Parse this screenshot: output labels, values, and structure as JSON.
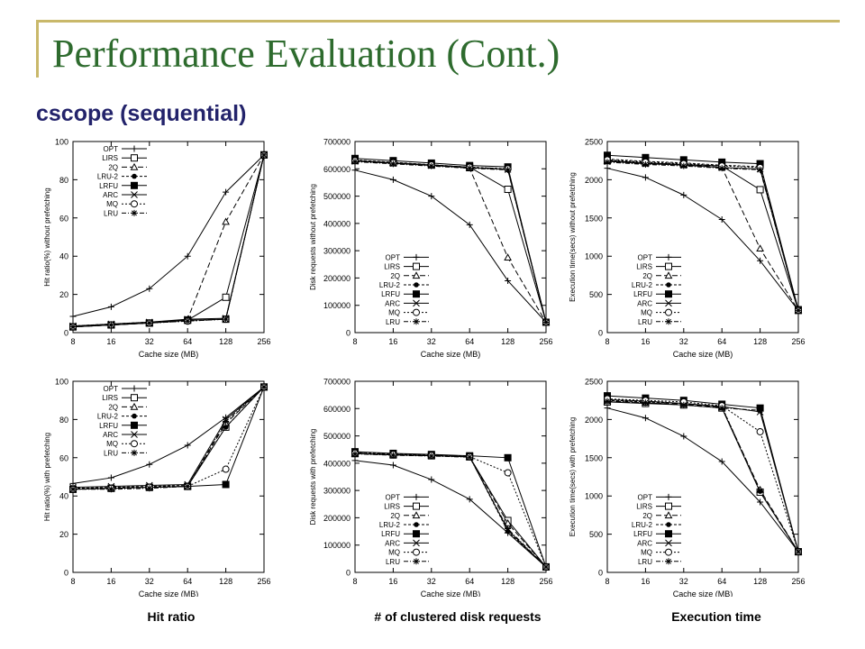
{
  "slide": {
    "title": "Performance Evaluation (Cont.)",
    "subtitle": "cscope (sequential)",
    "captions": [
      "Hit ratio",
      "# of clustered disk requests",
      "Execution time"
    ]
  },
  "legend_labels": [
    "OPT",
    "LIRS",
    "2Q",
    "LRU-2",
    "LRFU",
    "ARC",
    "MQ",
    "LRU"
  ],
  "chart_data": [
    {
      "type": "line",
      "xlabel": "Cache size (MB)",
      "ylabel": "Hit ratio(%) without prefetching",
      "categories": [
        "8",
        "16",
        "32",
        "64",
        "128",
        "256"
      ],
      "ylim": [
        0,
        100
      ],
      "yticks": [
        0,
        20,
        40,
        60,
        80,
        100
      ],
      "legend": "top-left",
      "series": [
        {
          "name": "OPT",
          "values": [
            8.5,
            13.5,
            23,
            40,
            73.5,
            93
          ]
        },
        {
          "name": "LIRS",
          "values": [
            3,
            4,
            5,
            6.5,
            18.5,
            93
          ]
        },
        {
          "name": "2Q",
          "values": [
            3,
            4,
            5,
            7,
            58,
            93
          ]
        },
        {
          "name": "LRU-2",
          "values": [
            3.5,
            4.5,
            5.5,
            6.5,
            7,
            93
          ]
        },
        {
          "name": "LRFU",
          "values": [
            3,
            4,
            5,
            6.5,
            7,
            93
          ]
        },
        {
          "name": "ARC",
          "values": [
            3.5,
            4.5,
            5.5,
            7,
            7.5,
            93
          ]
        },
        {
          "name": "MQ",
          "values": [
            3,
            4,
            5,
            6,
            7,
            93
          ]
        },
        {
          "name": "LRU",
          "values": [
            3,
            4,
            5,
            6,
            7,
            93
          ]
        }
      ]
    },
    {
      "type": "line",
      "xlabel": "Cache size (MB)",
      "ylabel": "Disk requests without prefetching",
      "categories": [
        "8",
        "16",
        "32",
        "64",
        "128",
        "256"
      ],
      "ylim": [
        0,
        700000
      ],
      "yticks": [
        0,
        100000,
        200000,
        300000,
        400000,
        500000,
        600000,
        700000
      ],
      "legend": "bottom-left",
      "series": [
        {
          "name": "OPT",
          "values": [
            595000,
            560000,
            500000,
            395000,
            190000,
            38000
          ]
        },
        {
          "name": "LIRS",
          "values": [
            630000,
            622000,
            614000,
            606000,
            525000,
            38000
          ]
        },
        {
          "name": "2Q",
          "values": [
            630000,
            622000,
            614000,
            602000,
            275000,
            38000
          ]
        },
        {
          "name": "LRU-2",
          "values": [
            632000,
            624000,
            615000,
            606000,
            600000,
            38000
          ]
        },
        {
          "name": "LRFU",
          "values": [
            638000,
            630000,
            621000,
            612000,
            607000,
            38000
          ]
        },
        {
          "name": "ARC",
          "values": [
            628000,
            620000,
            612000,
            604000,
            598000,
            38000
          ]
        },
        {
          "name": "MQ",
          "values": [
            630000,
            622000,
            614000,
            606000,
            600000,
            38000
          ]
        },
        {
          "name": "LRU",
          "values": [
            626000,
            618000,
            610000,
            602000,
            596000,
            38000
          ]
        }
      ]
    },
    {
      "type": "line",
      "xlabel": "Cache size (MB)",
      "ylabel": "Execution time(secs) without prefetching",
      "categories": [
        "8",
        "16",
        "32",
        "64",
        "128",
        "256"
      ],
      "ylim": [
        0,
        2500
      ],
      "yticks": [
        0,
        500,
        1000,
        1500,
        2000,
        2500
      ],
      "legend": "bottom-left",
      "series": [
        {
          "name": "OPT",
          "values": [
            2150,
            2030,
            1800,
            1480,
            940,
            290
          ]
        },
        {
          "name": "LIRS",
          "values": [
            2250,
            2220,
            2200,
            2180,
            1870,
            290
          ]
        },
        {
          "name": "2Q",
          "values": [
            2250,
            2220,
            2200,
            2160,
            1100,
            290
          ]
        },
        {
          "name": "LRU-2",
          "values": [
            2270,
            2240,
            2220,
            2190,
            2170,
            290
          ]
        },
        {
          "name": "LRFU",
          "values": [
            2320,
            2290,
            2260,
            2230,
            2210,
            300
          ]
        },
        {
          "name": "ARC",
          "values": [
            2240,
            2210,
            2190,
            2160,
            2140,
            290
          ]
        },
        {
          "name": "MQ",
          "values": [
            2260,
            2230,
            2210,
            2180,
            2160,
            290
          ]
        },
        {
          "name": "LRU",
          "values": [
            2230,
            2200,
            2180,
            2150,
            2130,
            290
          ]
        }
      ]
    },
    {
      "type": "line",
      "xlabel": "Cache size (MB)",
      "ylabel": "Hit ratio(%) with prefetching",
      "categories": [
        "8",
        "16",
        "32",
        "64",
        "128",
        "256"
      ],
      "ylim": [
        0,
        100
      ],
      "yticks": [
        0,
        20,
        40,
        60,
        80,
        100
      ],
      "legend": "top-left",
      "series": [
        {
          "name": "OPT",
          "values": [
            46.5,
            49.5,
            56.5,
            66.5,
            81,
            97
          ]
        },
        {
          "name": "LIRS",
          "values": [
            43.5,
            44,
            44.5,
            45,
            76,
            97
          ]
        },
        {
          "name": "2Q",
          "values": [
            43.5,
            44,
            44.5,
            45,
            78,
            97
          ]
        },
        {
          "name": "LRU-2",
          "values": [
            44,
            44.5,
            45,
            45.5,
            76,
            97
          ]
        },
        {
          "name": "LRFU",
          "values": [
            43.5,
            44,
            44.5,
            45,
            46,
            97
          ]
        },
        {
          "name": "ARC",
          "values": [
            44.5,
            45,
            45.5,
            46,
            80,
            97
          ]
        },
        {
          "name": "MQ",
          "values": [
            43.5,
            44,
            44.5,
            45,
            54,
            97
          ]
        },
        {
          "name": "LRU",
          "values": [
            43.5,
            43.5,
            44,
            45,
            79,
            97
          ]
        }
      ]
    },
    {
      "type": "line",
      "xlabel": "Cache size (MB)",
      "ylabel": "Disk requests with prefetching",
      "categories": [
        "8",
        "16",
        "32",
        "64",
        "128",
        "256"
      ],
      "ylim": [
        0,
        700000
      ],
      "yticks": [
        0,
        100000,
        200000,
        300000,
        400000,
        500000,
        600000,
        700000
      ],
      "legend": "bottom-left",
      "series": [
        {
          "name": "OPT",
          "values": [
            410000,
            393000,
            340000,
            268000,
            145000,
            20000
          ]
        },
        {
          "name": "LIRS",
          "values": [
            435000,
            430000,
            427000,
            423000,
            190000,
            20000
          ]
        },
        {
          "name": "2Q",
          "values": [
            435000,
            431000,
            428000,
            423000,
            180000,
            20000
          ]
        },
        {
          "name": "LRU-2",
          "values": [
            440000,
            434000,
            430000,
            425000,
            150000,
            20000
          ]
        },
        {
          "name": "LRFU",
          "values": [
            442000,
            436000,
            432000,
            427000,
            420000,
            20000
          ]
        },
        {
          "name": "ARC",
          "values": [
            436000,
            431000,
            428000,
            424000,
            155000,
            20000
          ]
        },
        {
          "name": "MQ",
          "values": [
            437000,
            432000,
            429000,
            424000,
            365000,
            20000
          ]
        },
        {
          "name": "LRU",
          "values": [
            434000,
            429000,
            426000,
            422000,
            160000,
            20000
          ]
        }
      ]
    },
    {
      "type": "line",
      "xlabel": "Cache size (MB)",
      "ylabel": "Execution time(secs) with prefetching",
      "categories": [
        "8",
        "16",
        "32",
        "64",
        "128",
        "256"
      ],
      "ylim": [
        0,
        2500
      ],
      "yticks": [
        0,
        500,
        1000,
        1500,
        2000,
        2500
      ],
      "legend": "bottom-left",
      "series": [
        {
          "name": "OPT",
          "values": [
            2150,
            2020,
            1780,
            1450,
            920,
            270
          ]
        },
        {
          "name": "LIRS",
          "values": [
            2230,
            2210,
            2190,
            2150,
            1050,
            270
          ]
        },
        {
          "name": "2Q",
          "values": [
            2240,
            2220,
            2200,
            2160,
            1080,
            270
          ]
        },
        {
          "name": "LRU-2",
          "values": [
            2250,
            2230,
            2210,
            2170,
            1060,
            270
          ]
        },
        {
          "name": "LRFU",
          "values": [
            2310,
            2280,
            2250,
            2200,
            2150,
            270
          ]
        },
        {
          "name": "ARC",
          "values": [
            2260,
            2240,
            2210,
            2170,
            2100,
            270
          ]
        },
        {
          "name": "MQ",
          "values": [
            2270,
            2250,
            2230,
            2180,
            1840,
            270
          ]
        },
        {
          "name": "LRU",
          "values": [
            2240,
            2220,
            2190,
            2150,
            2120,
            270
          ]
        }
      ]
    }
  ]
}
